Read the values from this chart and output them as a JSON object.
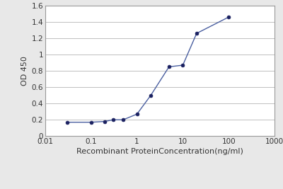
{
  "x": [
    0.03,
    0.1,
    0.2,
    0.3,
    0.5,
    1.0,
    2.0,
    5.0,
    10.0,
    20.0,
    100.0
  ],
  "y": [
    0.17,
    0.17,
    0.18,
    0.2,
    0.2,
    0.27,
    0.5,
    0.85,
    0.87,
    1.26,
    1.46
  ],
  "line_color": "#4a5fa0",
  "marker_color": "#1a2060",
  "marker_size": 3.5,
  "line_width": 1.0,
  "xlabel": "Recombinant ProteinConcentration(ng/ml)",
  "ylabel": "OD 450",
  "xlim_log": [
    0.01,
    1000
  ],
  "ylim": [
    0,
    1.6
  ],
  "yticks": [
    0,
    0.2,
    0.4,
    0.6,
    0.8,
    1.0,
    1.2,
    1.4,
    1.6
  ],
  "xticks": [
    0.01,
    0.1,
    1,
    10,
    100,
    1000
  ],
  "xtick_labels": [
    "0.01",
    "0.1",
    "1",
    "10",
    "100",
    "1000"
  ],
  "background_color": "#e8e8e8",
  "plot_bg_color": "#ffffff",
  "grid_color": "#c0c0c0",
  "xlabel_fontsize": 8,
  "ylabel_fontsize": 8,
  "tick_fontsize": 7.5,
  "spine_color": "#999999"
}
